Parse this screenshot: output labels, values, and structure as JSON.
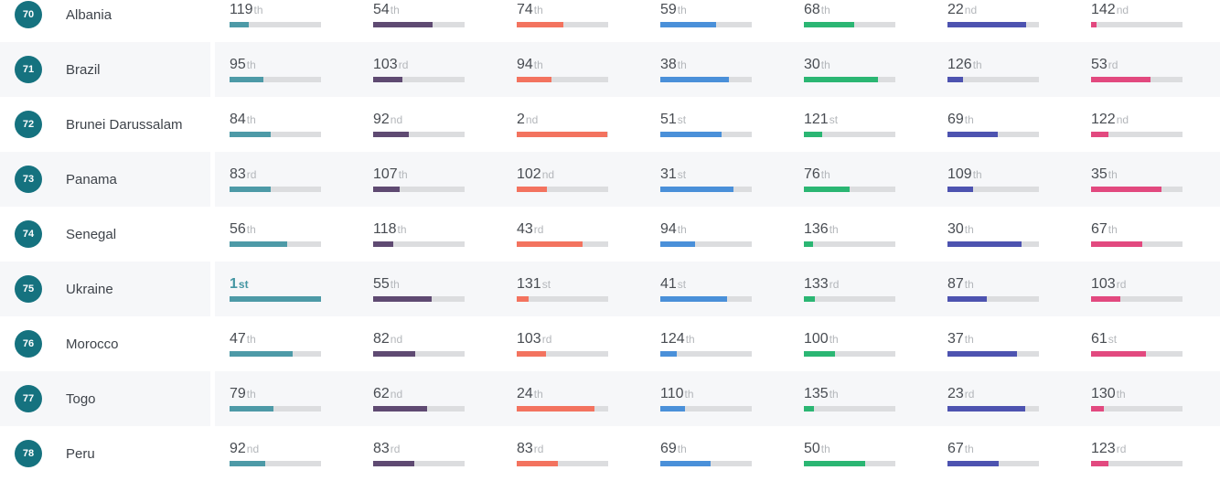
{
  "style": {
    "rank_badge_color": "#15727f",
    "track_color": "#dcdddf",
    "row_alt_background": "#f6f7f9",
    "highlight_color": "#4596a3",
    "number_color": "#484c52",
    "suffix_color": "#b4b7bb"
  },
  "table": {
    "columns": [
      {
        "name": "col1",
        "color": "#4d9aa7"
      },
      {
        "name": "col2",
        "color": "#5f4a72"
      },
      {
        "name": "col3",
        "color": "#f3735f"
      },
      {
        "name": "col4",
        "color": "#4a90d9"
      },
      {
        "name": "col5",
        "color": "#2bb673"
      },
      {
        "name": "col6",
        "color": "#4d53b0"
      },
      {
        "name": "col7",
        "color": "#e2497f"
      }
    ],
    "rows": [
      {
        "rank": 70,
        "country": "Albania",
        "cells": [
          {
            "rank": 119,
            "suffix": "th",
            "percent": 21
          },
          {
            "rank": 54,
            "suffix": "th",
            "percent": 65
          },
          {
            "rank": 74,
            "suffix": "th",
            "percent": 51
          },
          {
            "rank": 59,
            "suffix": "th",
            "percent": 61
          },
          {
            "rank": 68,
            "suffix": "th",
            "percent": 55
          },
          {
            "rank": 22,
            "suffix": "nd",
            "percent": 86
          },
          {
            "rank": 142,
            "suffix": "nd",
            "percent": 6
          }
        ]
      },
      {
        "rank": 71,
        "country": "Brazil",
        "cells": [
          {
            "rank": 95,
            "suffix": "th",
            "percent": 37
          },
          {
            "rank": 103,
            "suffix": "rd",
            "percent": 32
          },
          {
            "rank": 94,
            "suffix": "th",
            "percent": 38
          },
          {
            "rank": 38,
            "suffix": "th",
            "percent": 75
          },
          {
            "rank": 30,
            "suffix": "th",
            "percent": 81
          },
          {
            "rank": 126,
            "suffix": "th",
            "percent": 17
          },
          {
            "rank": 53,
            "suffix": "rd",
            "percent": 65
          }
        ]
      },
      {
        "rank": 72,
        "country": "Brunei Darussalam",
        "cells": [
          {
            "rank": 84,
            "suffix": "th",
            "percent": 45
          },
          {
            "rank": 92,
            "suffix": "nd",
            "percent": 39
          },
          {
            "rank": 2,
            "suffix": "nd",
            "percent": 99
          },
          {
            "rank": 51,
            "suffix": "st",
            "percent": 67
          },
          {
            "rank": 121,
            "suffix": "st",
            "percent": 20
          },
          {
            "rank": 69,
            "suffix": "th",
            "percent": 55
          },
          {
            "rank": 122,
            "suffix": "nd",
            "percent": 19
          }
        ]
      },
      {
        "rank": 73,
        "country": "Panama",
        "cells": [
          {
            "rank": 83,
            "suffix": "rd",
            "percent": 45
          },
          {
            "rank": 107,
            "suffix": "th",
            "percent": 29
          },
          {
            "rank": 102,
            "suffix": "nd",
            "percent": 33
          },
          {
            "rank": 31,
            "suffix": "st",
            "percent": 80
          },
          {
            "rank": 76,
            "suffix": "th",
            "percent": 50
          },
          {
            "rank": 109,
            "suffix": "th",
            "percent": 28
          },
          {
            "rank": 35,
            "suffix": "th",
            "percent": 77
          }
        ]
      },
      {
        "rank": 74,
        "country": "Senegal",
        "cells": [
          {
            "rank": 56,
            "suffix": "th",
            "percent": 63
          },
          {
            "rank": 118,
            "suffix": "th",
            "percent": 22
          },
          {
            "rank": 43,
            "suffix": "rd",
            "percent": 72
          },
          {
            "rank": 94,
            "suffix": "th",
            "percent": 38
          },
          {
            "rank": 136,
            "suffix": "th",
            "percent": 10
          },
          {
            "rank": 30,
            "suffix": "th",
            "percent": 81
          },
          {
            "rank": 67,
            "suffix": "th",
            "percent": 56
          }
        ]
      },
      {
        "rank": 75,
        "country": "Ukraine",
        "cells": [
          {
            "rank": 1,
            "suffix": "st",
            "percent": 100
          },
          {
            "rank": 55,
            "suffix": "th",
            "percent": 64
          },
          {
            "rank": 131,
            "suffix": "st",
            "percent": 13
          },
          {
            "rank": 41,
            "suffix": "st",
            "percent": 73
          },
          {
            "rank": 133,
            "suffix": "rd",
            "percent": 12
          },
          {
            "rank": 87,
            "suffix": "th",
            "percent": 43
          },
          {
            "rank": 103,
            "suffix": "rd",
            "percent": 32
          }
        ]
      },
      {
        "rank": 76,
        "country": "Morocco",
        "cells": [
          {
            "rank": 47,
            "suffix": "th",
            "percent": 69
          },
          {
            "rank": 82,
            "suffix": "nd",
            "percent": 46
          },
          {
            "rank": 103,
            "suffix": "rd",
            "percent": 32
          },
          {
            "rank": 124,
            "suffix": "th",
            "percent": 18
          },
          {
            "rank": 100,
            "suffix": "th",
            "percent": 34
          },
          {
            "rank": 37,
            "suffix": "th",
            "percent": 76
          },
          {
            "rank": 61,
            "suffix": "st",
            "percent": 60
          }
        ]
      },
      {
        "rank": 77,
        "country": "Togo",
        "cells": [
          {
            "rank": 79,
            "suffix": "th",
            "percent": 48
          },
          {
            "rank": 62,
            "suffix": "nd",
            "percent": 59
          },
          {
            "rank": 24,
            "suffix": "th",
            "percent": 85
          },
          {
            "rank": 110,
            "suffix": "th",
            "percent": 27
          },
          {
            "rank": 135,
            "suffix": "th",
            "percent": 11
          },
          {
            "rank": 23,
            "suffix": "rd",
            "percent": 85
          },
          {
            "rank": 130,
            "suffix": "th",
            "percent": 14
          }
        ]
      },
      {
        "rank": 78,
        "country": "Peru",
        "cells": [
          {
            "rank": 92,
            "suffix": "nd",
            "percent": 39
          },
          {
            "rank": 83,
            "suffix": "rd",
            "percent": 45
          },
          {
            "rank": 83,
            "suffix": "rd",
            "percent": 45
          },
          {
            "rank": 69,
            "suffix": "th",
            "percent": 55
          },
          {
            "rank": 50,
            "suffix": "th",
            "percent": 67
          },
          {
            "rank": 67,
            "suffix": "th",
            "percent": 56
          },
          {
            "rank": 123,
            "suffix": "rd",
            "percent": 19
          }
        ]
      }
    ]
  }
}
